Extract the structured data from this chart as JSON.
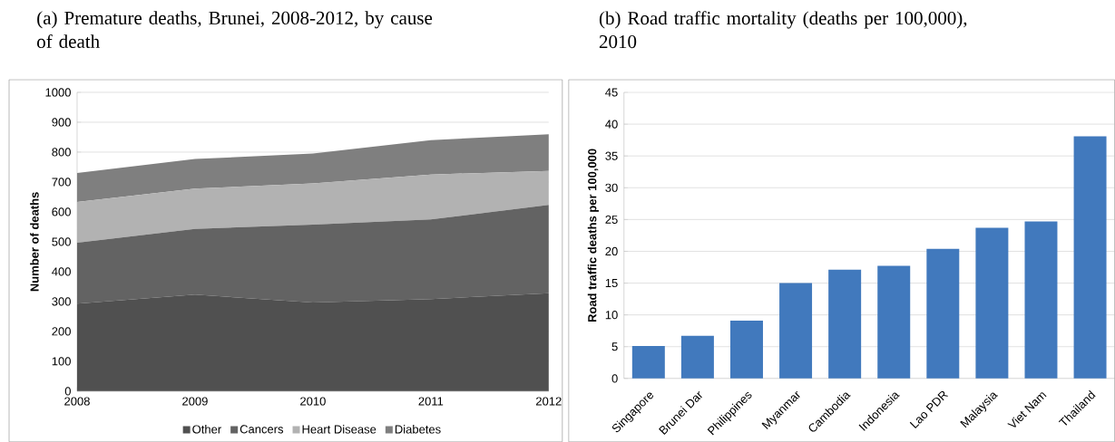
{
  "chart_data": [
    {
      "type": "area",
      "title": "(a) Premature deaths, Brunei, 2008-2012, by cause of death",
      "ylabel": "Number of deaths",
      "stacked": true,
      "x": [
        2008,
        2009,
        2010,
        2011,
        2012
      ],
      "xlim": [
        2008,
        2012
      ],
      "xticks": [
        2008,
        2009,
        2010,
        2011,
        2012
      ],
      "ylim": [
        0,
        1000
      ],
      "yticks": [
        0,
        100,
        200,
        300,
        400,
        500,
        600,
        700,
        800,
        900,
        1000
      ],
      "grid": "y",
      "legend": "bottom",
      "series": [
        {
          "name": "Other",
          "color": "#505050",
          "values": [
            293,
            323,
            297,
            308,
            328
          ]
        },
        {
          "name": "Cancers",
          "color": "#636363",
          "values": [
            204,
            220,
            260,
            267,
            295
          ]
        },
        {
          "name": "Heart Disease",
          "color": "#b2b2b2",
          "values": [
            136,
            135,
            138,
            150,
            114
          ]
        },
        {
          "name": "Diabetes",
          "color": "#7f7f7f",
          "values": [
            97,
            99,
            100,
            115,
            123
          ]
        }
      ]
    },
    {
      "type": "bar",
      "title": "(b) Road traffic mortality (deaths per 100,000), 2010",
      "ylabel": "Road traffic deaths per 100,000",
      "categories": [
        "Singapore",
        "Brunei Dar",
        "Philippines",
        "Myanmar",
        "Cambodia",
        "Indonesia",
        "Lao PDR",
        "Malaysia",
        "Viet Nam",
        "Thailand"
      ],
      "values": [
        5.1,
        6.7,
        9.1,
        15,
        17.1,
        17.7,
        20.4,
        23.7,
        24.7,
        38.1
      ],
      "color": "#4179bd",
      "ylim": [
        0,
        45
      ],
      "yticks": [
        0,
        5,
        10,
        15,
        20,
        25,
        30,
        35,
        40,
        45
      ],
      "grid": "y"
    }
  ]
}
